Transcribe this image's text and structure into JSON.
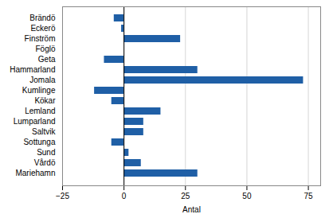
{
  "chart_data": {
    "type": "bar",
    "orientation": "horizontal",
    "categories": [
      "Brändö",
      "Eckerö",
      "Finström",
      "Föglö",
      "Geta",
      "Hammarland",
      "Jomala",
      "Kumlinge",
      "Kökar",
      "Lemland",
      "Lumparland",
      "Saltvik",
      "Sottunga",
      "Sund",
      "Vårdö",
      "Mariehamn"
    ],
    "values": [
      -4,
      -1,
      23,
      0,
      -8,
      30,
      73,
      -12,
      -5,
      15,
      8,
      8,
      -5,
      2,
      7,
      30
    ],
    "color": "#1f5fa6",
    "xlabel": "Antal",
    "xlim": [
      -25,
      80
    ],
    "xticks": [
      -25,
      0,
      25,
      50,
      75
    ],
    "grid": true
  }
}
